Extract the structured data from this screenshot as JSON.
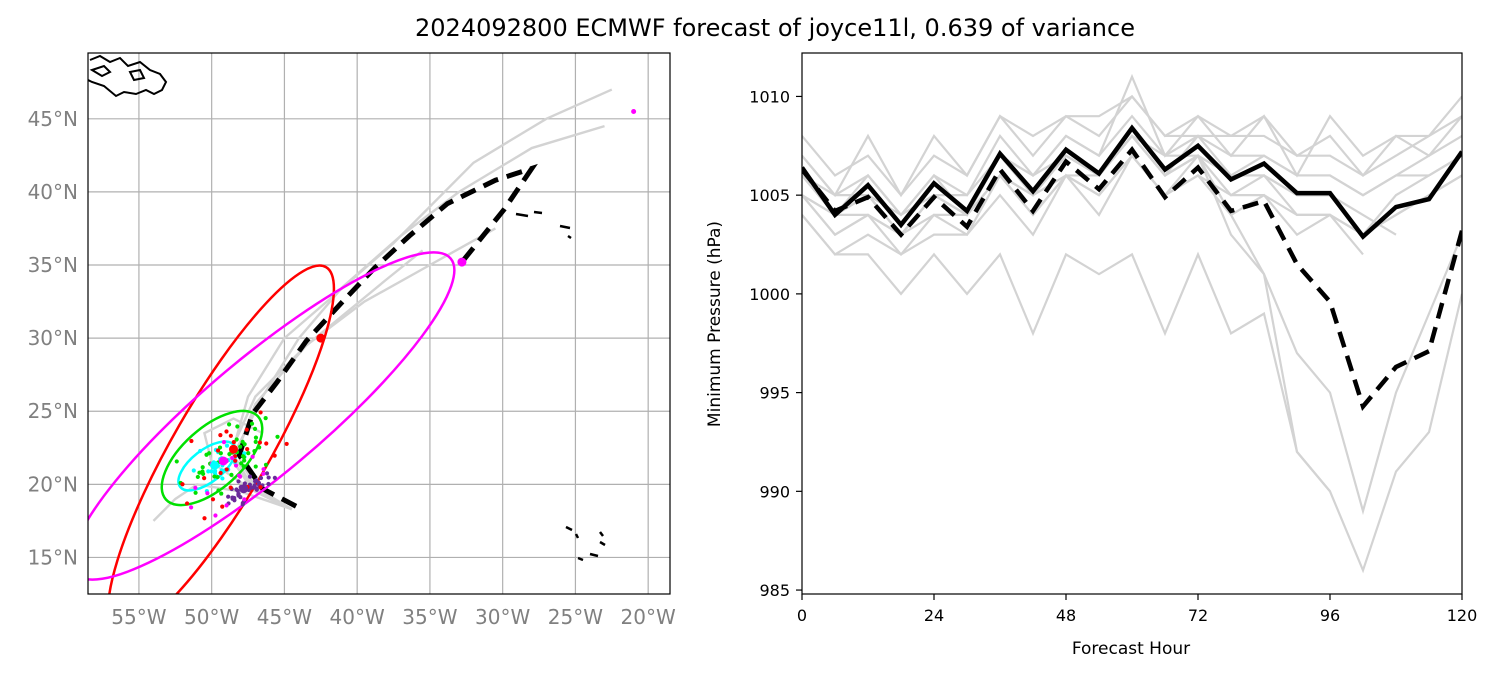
{
  "figure": {
    "title": "2024092800 ECMWF forecast of joyce11l, 0.639 of variance"
  },
  "colors": {
    "mean": "#000000",
    "ensemble": "#d3d3d3",
    "grid": "#b0b0b0",
    "cyan": "#00ffff",
    "green": "#00e000",
    "red": "#ff0000",
    "magenta": "#ff00ff",
    "purple": "#6a2a9a"
  },
  "chart_data": [
    {
      "type": "map",
      "title": "",
      "xlabels": [
        "55°W",
        "50°W",
        "45°W",
        "40°W",
        "35°W",
        "30°W",
        "25°W",
        "20°W"
      ],
      "xticks": [
        -55,
        -50,
        -45,
        -40,
        -35,
        -30,
        -25,
        -20
      ],
      "ylabels": [
        "15°N",
        "20°N",
        "25°N",
        "30°N",
        "35°N",
        "40°N",
        "45°N"
      ],
      "yticks": [
        15,
        20,
        25,
        30,
        35,
        40,
        45
      ],
      "xlim": [
        -58.5,
        -18.5
      ],
      "ylim": [
        12.5,
        49.5
      ],
      "mean_track": {
        "lon": [
          -44.2,
          -46.5,
          -48.1,
          -47.2,
          -45.5,
          -43.5,
          -41.0,
          -38.8,
          -36.4,
          -33.8,
          -30.5,
          -28.0,
          -29.9,
          -32.8
        ],
        "lat": [
          18.5,
          19.7,
          22.0,
          24.8,
          27.0,
          29.8,
          32.5,
          34.8,
          37.0,
          39.2,
          40.8,
          41.6,
          38.8,
          35.2
        ]
      },
      "ensemble_tracks": [
        {
          "lon": [
            -44.5,
            -47.0,
            -48.5,
            -46.5,
            -44.0,
            -41.0,
            -37.0,
            -33.0,
            -28.0,
            -23.0
          ],
          "lat": [
            18.3,
            19.5,
            22.0,
            26.0,
            30.0,
            33.5,
            37.0,
            40.0,
            43.0,
            44.5
          ]
        },
        {
          "lon": [
            -44.5,
            -47.0,
            -48.5,
            -47.5,
            -45.0,
            -41.5,
            -37.5,
            -32.0,
            -27.0,
            -22.5
          ],
          "lat": [
            18.3,
            19.8,
            22.5,
            26.0,
            30.0,
            33.0,
            36.5,
            42.0,
            45.0,
            47.0
          ]
        },
        {
          "lon": [
            -44.5,
            -47.2,
            -48.8,
            -47.0,
            -43.5,
            -39.5,
            -35.0,
            -30.5
          ],
          "lat": [
            18.3,
            19.6,
            22.0,
            26.0,
            29.5,
            32.5,
            35.0,
            37.5
          ]
        },
        {
          "lon": [
            -44.5,
            -47.5,
            -50.0,
            -50.5,
            -48.5,
            -46.5
          ],
          "lat": [
            18.3,
            19.8,
            21.5,
            23.5,
            24.5,
            23.5
          ]
        },
        {
          "lon": [
            -44.5,
            -48.0,
            -51.0,
            -52.5,
            -54.0
          ],
          "lat": [
            18.3,
            19.5,
            20.0,
            19.0,
            17.5
          ]
        },
        {
          "lon": [
            -44.5,
            -47.0,
            -48.5,
            -47.0,
            -43.5,
            -38.0,
            -35.5
          ],
          "lat": [
            18.3,
            19.5,
            21.5,
            25.5,
            29.5,
            34.0,
            36.0
          ]
        }
      ],
      "ellipses": [
        {
          "color": "cyan",
          "lon": -49.3,
          "lat": 21.3,
          "note": "cyan uncertainty ellipse"
        },
        {
          "color": "green",
          "lon": -49.0,
          "lat": 22.2,
          "note": "green uncertainty ellipse"
        },
        {
          "color": "red",
          "lon": -47.0,
          "lat": 22.0,
          "note": "red uncertainty ellipse"
        },
        {
          "color": "magenta",
          "lon": -45.0,
          "lat": 24.0,
          "note": "magenta uncertainty ellipse"
        }
      ],
      "highlighted_positions": [
        {
          "color": "purple",
          "lon": -47.8,
          "lat": 19.7
        },
        {
          "color": "cyan",
          "lon": -49.8,
          "lat": 21.3
        },
        {
          "color": "magenta",
          "lon": -49.2,
          "lat": 21.6
        },
        {
          "color": "red",
          "lon": -48.5,
          "lat": 22.4
        },
        {
          "color": "red",
          "lon": -42.5,
          "lat": 30.0
        },
        {
          "color": "magenta",
          "lon": -32.8,
          "lat": 35.2
        },
        {
          "color": "magenta",
          "lon": -21.0,
          "lat": 45.5
        }
      ]
    },
    {
      "type": "line",
      "title": "",
      "xlabel": "Forecast Hour",
      "ylabel": "Minimum Pressure (hPa)",
      "xlim": [
        0,
        120
      ],
      "ylim": [
        984.8,
        1012.2
      ],
      "xticks": [
        0,
        24,
        48,
        72,
        96,
        120
      ],
      "xtick_labels": [
        "0",
        "24",
        "48",
        "72",
        "96",
        "120"
      ],
      "yticks": [
        985,
        990,
        995,
        1000,
        1005,
        1010
      ],
      "ytick_labels": [
        "985",
        "990",
        "995",
        "1000",
        "1005",
        "1010"
      ],
      "x": [
        0,
        6,
        12,
        18,
        24,
        30,
        36,
        42,
        48,
        54,
        60,
        66,
        72,
        78,
        84,
        90,
        96,
        102,
        108,
        114,
        120
      ],
      "series": [
        {
          "name": "mean",
          "style": "solid",
          "values": [
            1006.4,
            1004.0,
            1005.5,
            1003.5,
            1005.6,
            1004.2,
            1007.1,
            1005.2,
            1007.3,
            1006.1,
            1008.4,
            1006.3,
            1007.5,
            1005.8,
            1006.6,
            1005.1,
            1005.1,
            1002.9,
            1004.4,
            1004.8,
            1007.2
          ]
        },
        {
          "name": "deterministic",
          "style": "dashed",
          "values": [
            1006.3,
            1004.2,
            1004.9,
            1003.0,
            1004.9,
            1003.4,
            1006.3,
            1004.2,
            1006.7,
            1005.3,
            1007.3,
            1004.9,
            1006.4,
            1004.2,
            1004.7,
            1001.5,
            999.6,
            994.3,
            996.3,
            997.1,
            1003.2
          ]
        }
      ],
      "ensemble": [
        [
          1006,
          1004,
          1005,
          1003,
          1005,
          1004,
          1007,
          1005,
          1007,
          1006,
          1008,
          1006,
          1007,
          1006,
          1006,
          1005,
          1005,
          1003,
          1005,
          1006,
          1007
        ],
        [
          1007,
          1005,
          1006,
          1004,
          1006,
          1005,
          1008,
          1006,
          1008,
          1007,
          1009,
          1007,
          1008,
          1007,
          1007,
          1006,
          1006,
          1005,
          1006,
          1007,
          1008
        ],
        [
          1005,
          1003,
          1004,
          1002,
          1004,
          1003,
          1006,
          1004,
          1006,
          1005,
          1007,
          1005,
          1006,
          1005,
          1005,
          1004,
          1004,
          1003,
          1004,
          1005,
          1006
        ],
        [
          1008,
          1006,
          1007,
          1005,
          1007,
          1006,
          1009,
          1007,
          1009,
          1008,
          1010,
          1008,
          1009,
          1008,
          1008,
          1007,
          1007,
          1006,
          1007,
          1008,
          1009
        ],
        [
          1006,
          1004,
          1006,
          1004,
          1006,
          1004,
          1007,
          1006,
          1008,
          1007,
          1011,
          1007,
          1009,
          1007,
          1009,
          1006,
          1009,
          1007,
          1008,
          1008,
          1010
        ],
        [
          1007,
          1005,
          1008,
          1005,
          1008,
          1006,
          1009,
          1008,
          1009,
          1009,
          1010,
          1008,
          1008,
          1008,
          1009,
          1007,
          1008,
          1006,
          1008,
          1007,
          1009
        ],
        [
          1005,
          1004,
          1005,
          1003,
          1005,
          1004,
          1006,
          1005,
          1007,
          1006,
          1008,
          1006,
          1007,
          1005,
          1006,
          1004,
          1004,
          1002,
          null,
          null,
          null
        ],
        [
          1004,
          1002,
          1003,
          1002,
          1003,
          1003,
          1005,
          1003,
          1006,
          1004,
          1007,
          1005,
          1006,
          1004,
          1005,
          1003,
          1004,
          1003,
          1004,
          1005,
          1006
        ],
        [
          1006,
          1004,
          1005,
          1003,
          1005,
          1004,
          1007,
          1005,
          1007,
          1006,
          1008,
          1006,
          1008,
          1006,
          1007,
          1006,
          1006,
          1005,
          1006,
          1006,
          1007
        ],
        [
          1005,
          1003,
          1004,
          1003,
          1004,
          1004,
          1006,
          1004,
          1006,
          1005,
          1007,
          1005,
          1007,
          1006,
          1006,
          1005,
          1005,
          1004,
          1003,
          null,
          null
        ],
        [
          1006,
          1005,
          1005,
          1004,
          1005,
          1005,
          1007,
          1006,
          1007,
          1006,
          1008,
          1007,
          1007,
          1004,
          1001,
          997,
          995,
          989,
          995,
          999,
          1003
        ],
        [
          1005,
          1004,
          1004,
          1003,
          1005,
          1004,
          1006,
          1005,
          1006,
          1006,
          1008,
          1006,
          1007,
          1003,
          1001,
          992,
          990,
          986,
          991,
          993,
          1000
        ],
        [
          1004,
          1002,
          1002,
          1000,
          1002,
          1000,
          1002,
          998,
          1002,
          1001,
          1002,
          998,
          1002,
          998,
          999,
          992,
          990,
          null,
          null,
          null,
          null
        ]
      ]
    }
  ]
}
